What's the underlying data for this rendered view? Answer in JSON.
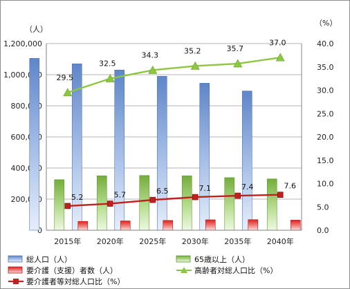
{
  "chart_data": {
    "type": "bar",
    "categories": [
      "2015年",
      "2020年",
      "2025年",
      "2030年",
      "2035年",
      "2040年"
    ],
    "left_axis": {
      "unit": "（人）",
      "ylim": [
        0,
        1200000
      ],
      "ticks": [
        "0",
        "200,000",
        "400,000",
        "600,000",
        "800,000",
        "1,000,000",
        "1,200,000"
      ]
    },
    "right_axis": {
      "unit": "（%）",
      "ylim": [
        0,
        40
      ],
      "ticks": [
        "0.0",
        "5.0",
        "10.0",
        "15.0",
        "20.0",
        "25.0",
        "30.0",
        "35.0",
        "40.0"
      ]
    },
    "series": [
      {
        "name": "総人口（人）",
        "type": "bar",
        "axis": "left",
        "color": "#7da1d8",
        "values": [
          1105000,
          1070000,
          1030000,
          990000,
          945000,
          895000
        ]
      },
      {
        "name": "65歳以上（人）",
        "type": "bar",
        "axis": "left",
        "color": "#8fc45a",
        "values": [
          325000,
          350000,
          352000,
          350000,
          338000,
          330000
        ]
      },
      {
        "name": "要介護（支援）者数（人）",
        "type": "bar",
        "axis": "left",
        "color": "#d9302c",
        "values": [
          57000,
          60000,
          63000,
          67000,
          68000,
          65000
        ]
      },
      {
        "name": "高齢者対総人口比（%）",
        "type": "line",
        "axis": "right",
        "color": "#8dc63f",
        "marker": "triangle",
        "values": [
          29.5,
          32.5,
          34.3,
          35.2,
          35.7,
          37.0
        ],
        "labels": [
          "29.5",
          "32.5",
          "34.3",
          "35.2",
          "35.7",
          "37.0"
        ]
      },
      {
        "name": "要介護者等対総人口比（%）",
        "type": "line",
        "axis": "right",
        "color": "#c0201e",
        "marker": "square",
        "values": [
          5.2,
          5.7,
          6.5,
          7.1,
          7.4,
          7.6
        ],
        "labels": [
          "5.2",
          "5.7",
          "6.5",
          "7.1",
          "7.4",
          "7.6"
        ]
      }
    ],
    "grid": true,
    "legend_position": "bottom"
  }
}
